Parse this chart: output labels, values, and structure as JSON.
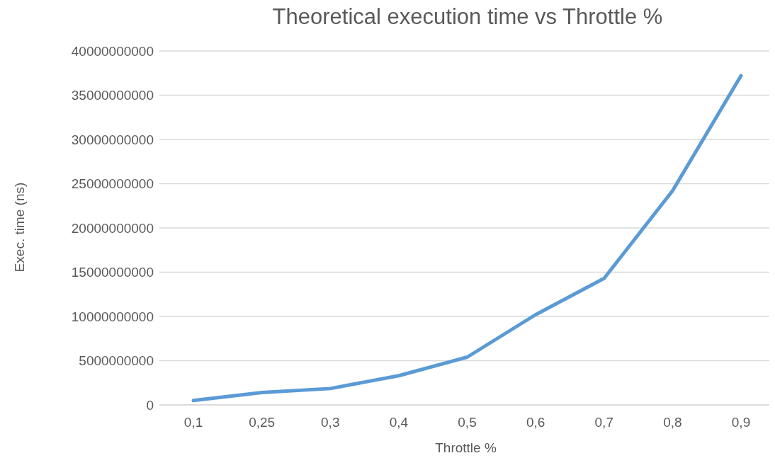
{
  "chart_data": {
    "type": "line",
    "title": "Theoretical execution time vs Throttle %",
    "xlabel": "Throttle %",
    "ylabel": "Exec. time (ns)",
    "categories": [
      "0,1",
      "0,25",
      "0,3",
      "0,4",
      "0,5",
      "0,6",
      "0,7",
      "0,8",
      "0,9"
    ],
    "series": [
      {
        "color": "#5b9bd5",
        "values": [
          500000000,
          1400000000,
          1850000000,
          3300000000,
          5400000000,
          10200000000,
          14300000000,
          24200000000,
          37200000000
        ]
      }
    ],
    "ylim": [
      0,
      40000000000
    ],
    "yticks": [
      0,
      5000000000,
      10000000000,
      15000000000,
      20000000000,
      25000000000,
      30000000000,
      35000000000,
      40000000000
    ],
    "grid": "y",
    "legend": false,
    "marker": "none",
    "line_style": "solid"
  }
}
